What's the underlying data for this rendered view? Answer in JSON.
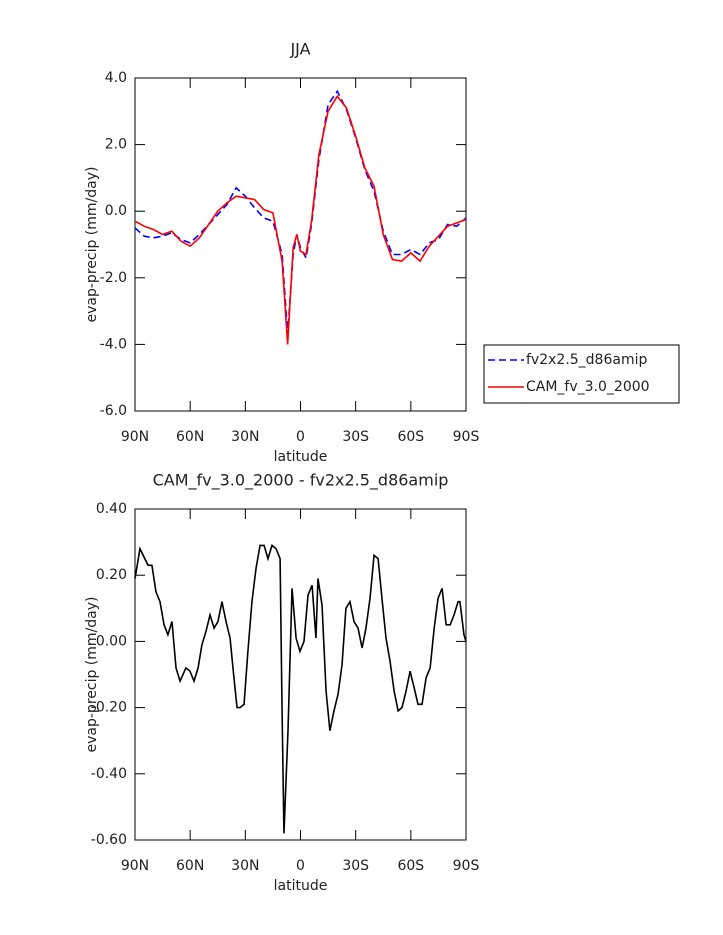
{
  "chart_data": [
    {
      "type": "line",
      "title": "JJA",
      "xlabel": "latitude",
      "ylabel": "evap-precip (mm/day)",
      "x": [
        90,
        85,
        80,
        75,
        70,
        65,
        60,
        55,
        50,
        45,
        40,
        35,
        30,
        25,
        20,
        15,
        10,
        7,
        4,
        2,
        0,
        -3,
        -6,
        -10,
        -15,
        -20,
        -25,
        -30,
        -35,
        -40,
        -45,
        -50,
        -55,
        -60,
        -65,
        -70,
        -75,
        -80,
        -85,
        -90
      ],
      "series": [
        {
          "name": "fv2x2.5_d86amip",
          "color": "#0000ff",
          "dashed": true,
          "values": [
            -0.5,
            -0.75,
            -0.8,
            -0.75,
            -0.65,
            -0.85,
            -0.95,
            -0.7,
            -0.4,
            -0.1,
            0.2,
            0.7,
            0.45,
            0.1,
            -0.2,
            -0.3,
            -1.3,
            -3.7,
            -1.3,
            -0.7,
            -1.1,
            -1.4,
            -0.4,
            1.55,
            3.2,
            3.6,
            3.05,
            2.2,
            1.25,
            0.6,
            -0.6,
            -1.3,
            -1.3,
            -1.15,
            -1.3,
            -0.95,
            -0.85,
            -0.4,
            -0.45,
            -0.2
          ]
        },
        {
          "name": "CAM_fv_3.0_2000",
          "color": "#ff0000",
          "dashed": false,
          "values": [
            -0.3,
            -0.45,
            -0.55,
            -0.7,
            -0.6,
            -0.9,
            -1.05,
            -0.8,
            -0.4,
            0.0,
            0.25,
            0.45,
            0.4,
            0.35,
            0.05,
            -0.05,
            -1.5,
            -4.0,
            -1.1,
            -0.7,
            -1.2,
            -1.3,
            -0.3,
            1.7,
            3.0,
            3.45,
            3.1,
            2.25,
            1.3,
            0.75,
            -0.7,
            -1.45,
            -1.5,
            -1.25,
            -1.5,
            -1.05,
            -0.75,
            -0.45,
            -0.35,
            -0.25
          ]
        }
      ],
      "xlim": [
        90,
        -90
      ],
      "xticks": [
        {
          "value": 90,
          "label": "90N"
        },
        {
          "value": 60,
          "label": "60N"
        },
        {
          "value": 30,
          "label": "30N"
        },
        0,
        {
          "value": -30,
          "label": "30S"
        },
        {
          "value": -60,
          "label": "60S"
        },
        {
          "value": -90,
          "label": "90S"
        }
      ],
      "ylim": [
        -6,
        4
      ],
      "yticks": [
        {
          "value": -6,
          "label": "-6.0"
        },
        {
          "value": -4,
          "label": "-4.0"
        },
        {
          "value": -2,
          "label": "-2.0"
        },
        {
          "value": 0,
          "label": "0.0"
        },
        {
          "value": 2,
          "label": "2.0"
        },
        {
          "value": 4,
          "label": "4.0"
        }
      ],
      "legend": "outside-right"
    },
    {
      "type": "line",
      "title": "CAM_fv_3.0_2000 - fv2x2.5_d86amip",
      "xlabel": "latitude",
      "ylabel": "evap-precip (mm/day)",
      "x": [
        90,
        87.3,
        82.9,
        80.8,
        78.6,
        76.4,
        74.2,
        72.1,
        69.9,
        67.7,
        65.5,
        62.3,
        60.1,
        57.9,
        55.7,
        53.6,
        51.4,
        49.2,
        47.0,
        44.9,
        42.7,
        40.5,
        38.3,
        36.2,
        34.5,
        32.9,
        30.7,
        28.6,
        26.4,
        24.2,
        22.0,
        19.8,
        17.7,
        15.5,
        13.3,
        11.1,
        10.1,
        9.0,
        6.8,
        4.6,
        2.4,
        0.3,
        -1.9,
        -4.1,
        -6.3,
        -8.4,
        -9.5,
        -11.7,
        -13.9,
        -16.0,
        -18.2,
        -20.4,
        -22.6,
        -24.7,
        -26.9,
        -29.1,
        -31.3,
        -33.5,
        -35.6,
        -37.8,
        -40.0,
        -42.2,
        -44.3,
        -46.5,
        -48.7,
        -50.9,
        -53.1,
        -55.2,
        -57.4,
        -59.6,
        -61.8,
        -63.9,
        -66.1,
        -68.3,
        -70.5,
        -72.7,
        -74.8,
        -77.0,
        -79.2,
        -81.4,
        -83.5,
        -85.7,
        -86.7,
        -88.9,
        -90
      ],
      "values": [
        0.19,
        0.28,
        0.23,
        0.23,
        0.15,
        0.12,
        0.05,
        0.02,
        0.06,
        -0.08,
        -0.12,
        -0.08,
        -0.09,
        -0.12,
        -0.08,
        -0.01,
        0.03,
        0.08,
        0.04,
        0.06,
        0.12,
        0.06,
        0.01,
        -0.11,
        -0.2,
        -0.2,
        -0.19,
        -0.03,
        0.12,
        0.22,
        0.29,
        0.29,
        0.25,
        0.29,
        0.28,
        0.25,
        -0.18,
        -0.58,
        -0.27,
        0.16,
        0.01,
        -0.03,
        0.0,
        0.14,
        0.17,
        0.01,
        0.19,
        0.11,
        -0.15,
        -0.27,
        -0.21,
        -0.16,
        -0.07,
        0.1,
        0.12,
        0.06,
        0.04,
        -0.02,
        0.04,
        0.13,
        0.26,
        0.25,
        0.13,
        0.01,
        -0.06,
        -0.15,
        -0.21,
        -0.2,
        -0.15,
        -0.09,
        -0.14,
        -0.19,
        -0.19,
        -0.11,
        -0.08,
        0.04,
        0.13,
        0.16,
        0.05,
        0.05,
        0.08,
        0.12,
        0.12,
        0.02,
        0.0
      ],
      "color": "#000000",
      "xlim": [
        90,
        -90
      ],
      "xticks": [
        {
          "value": 90,
          "label": "90N"
        },
        {
          "value": 60,
          "label": "60N"
        },
        {
          "value": 30,
          "label": "30N"
        },
        0,
        {
          "value": -30,
          "label": "30S"
        },
        {
          "value": -60,
          "label": "60S"
        },
        {
          "value": -90,
          "label": "90S"
        }
      ],
      "ylim": [
        -0.6,
        0.4
      ],
      "yticks": [
        {
          "value": -0.6,
          "label": "-0.60"
        },
        {
          "value": -0.4,
          "label": "-0.40"
        },
        {
          "value": -0.2,
          "label": "-0.20"
        },
        {
          "value": 0,
          "label": "0.00"
        },
        {
          "value": 0.2,
          "label": "0.20"
        },
        {
          "value": 0.4,
          "label": "0.40"
        }
      ]
    }
  ]
}
